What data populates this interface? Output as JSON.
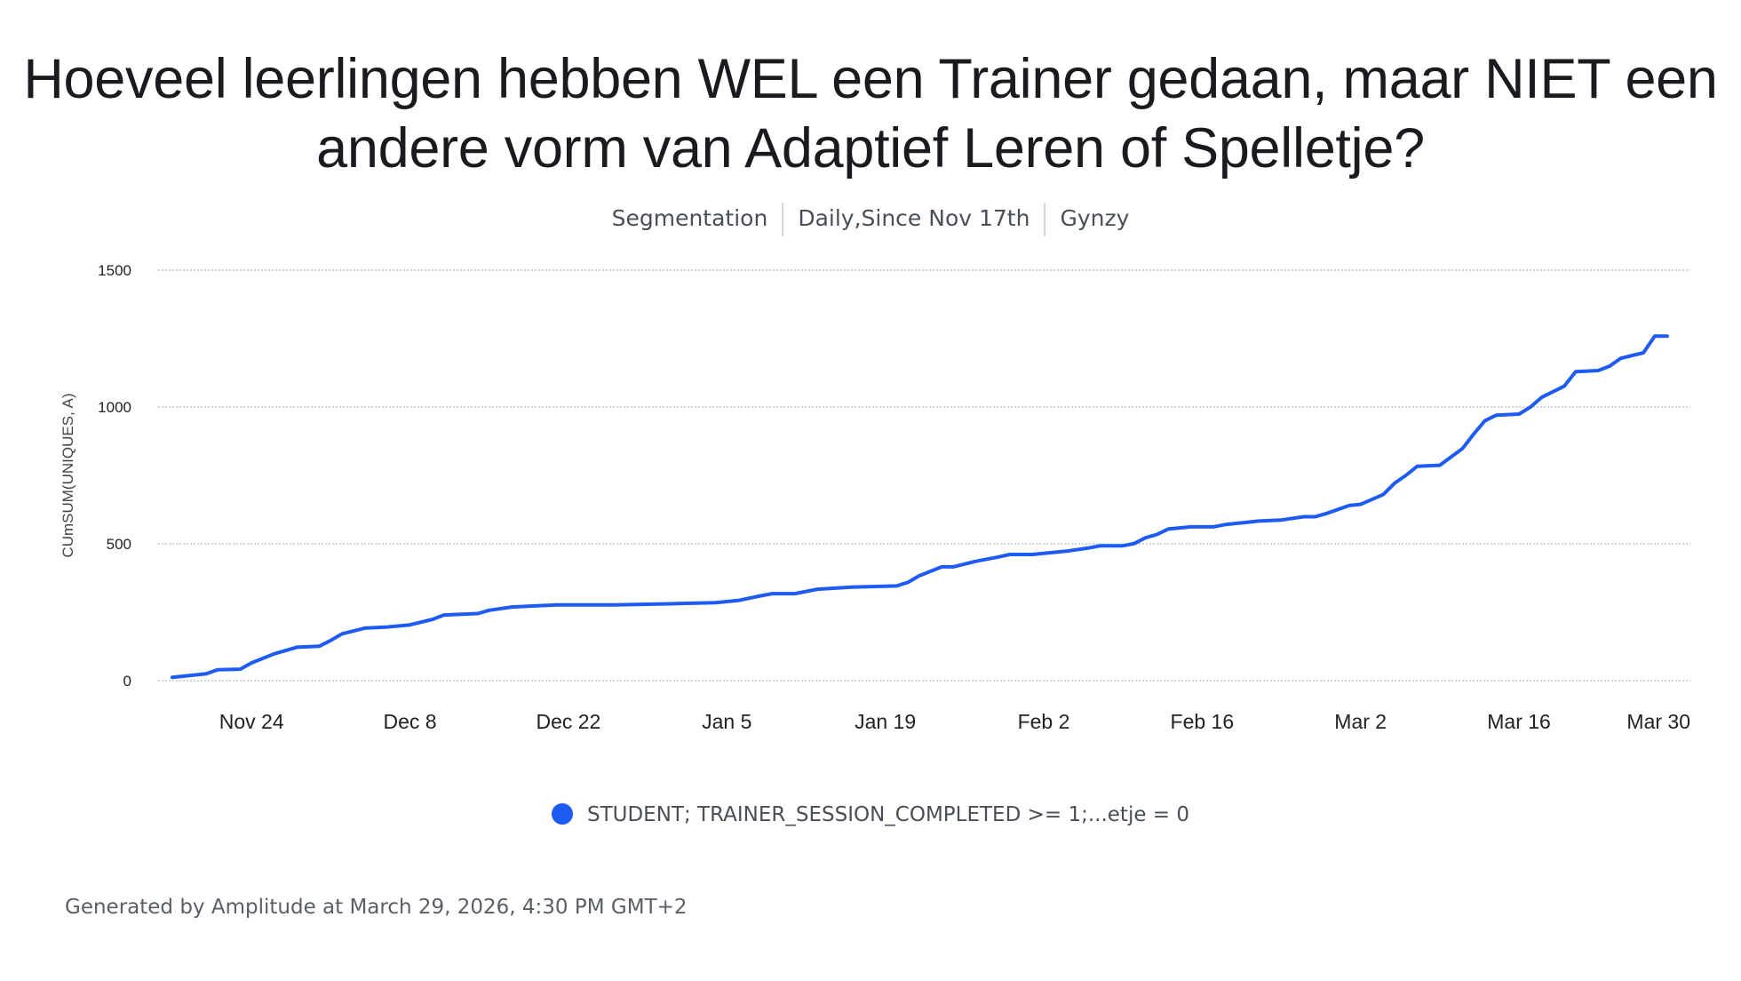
{
  "title": "Hoeveel leerlingen hebben WEL een Trainer gedaan, maar NIET een andere vorm van Adaptief Leren of Spelletje?",
  "subtitle": [
    "Segmentation",
    "Daily,Since Nov 17th",
    "Gynzy"
  ],
  "footer": "Generated by Amplitude at March 29, 2026, 4:30 PM GMT+2",
  "colors": {
    "series": "#1e5bf2",
    "grid": "#c4c9d0"
  },
  "chart_data": {
    "type": "line",
    "title": "",
    "xlabel": "",
    "ylabel": "CUmSUM(UNIQUES, A)",
    "ylim": [
      0,
      1500
    ],
    "yticks": [
      "0",
      "500",
      "1000",
      "1500"
    ],
    "ytick_values": [
      0,
      500,
      1000,
      1500
    ],
    "xlim": [
      "2025-11-17",
      "2026-03-29"
    ],
    "xticks": [
      {
        "date": "2025-11-24",
        "label": "Nov 24"
      },
      {
        "date": "2025-12-08",
        "label": "Dec 8"
      },
      {
        "date": "2025-12-22",
        "label": "Dec 22"
      },
      {
        "date": "2026-01-05",
        "label": "Jan 5"
      },
      {
        "date": "2026-01-19",
        "label": "Jan 19"
      },
      {
        "date": "2026-02-02",
        "label": "Feb 2"
      },
      {
        "date": "2026-02-16",
        "label": "Feb 16"
      },
      {
        "date": "2026-03-02",
        "label": "Mar 2"
      },
      {
        "date": "2026-03-16",
        "label": "Mar 16"
      },
      {
        "date": "2026-03-30",
        "label": "Mar 30"
      }
    ],
    "grid": true,
    "legend_position": "bottom",
    "series": [
      {
        "name": "STUDENT; TRAINER_SESSION_COMPLETED >= 1;...etje = 0",
        "x": [
          "2025-11-17",
          "2025-11-20",
          "2025-11-21",
          "2025-11-23",
          "2025-11-24",
          "2025-11-26",
          "2025-11-28",
          "2025-11-30",
          "2025-12-01",
          "2025-12-02",
          "2025-12-04",
          "2025-12-06",
          "2025-12-08",
          "2025-12-10",
          "2025-12-11",
          "2025-12-14",
          "2025-12-15",
          "2025-12-17",
          "2025-12-19",
          "2025-12-21",
          "2025-12-26",
          "2025-12-31",
          "2026-01-04",
          "2026-01-06",
          "2026-01-08",
          "2026-01-09",
          "2026-01-11",
          "2026-01-13",
          "2026-01-16",
          "2026-01-20",
          "2026-01-21",
          "2026-01-22",
          "2026-01-24",
          "2026-01-25",
          "2026-01-27",
          "2026-01-29",
          "2026-01-30",
          "2026-02-01",
          "2026-02-03",
          "2026-02-04",
          "2026-02-06",
          "2026-02-07",
          "2026-02-09",
          "2026-02-10",
          "2026-02-11",
          "2026-02-12",
          "2026-02-13",
          "2026-02-15",
          "2026-02-17",
          "2026-02-18",
          "2026-02-20",
          "2026-02-21",
          "2026-02-23",
          "2026-02-25",
          "2026-02-26",
          "2026-02-27",
          "2026-03-01",
          "2026-03-02",
          "2026-03-04",
          "2026-03-05",
          "2026-03-06",
          "2026-03-07",
          "2026-03-09",
          "2026-03-11",
          "2026-03-12",
          "2026-03-13",
          "2026-03-14",
          "2026-03-16",
          "2026-03-17",
          "2026-03-18",
          "2026-03-20",
          "2026-03-21",
          "2026-03-23",
          "2026-03-24",
          "2026-03-25",
          "2026-03-27",
          "2026-03-28"
        ],
        "y": [
          12,
          25,
          40,
          42,
          65,
          98,
          122,
          126,
          147,
          171,
          192,
          196,
          204,
          224,
          240,
          245,
          257,
          269,
          273,
          277,
          277,
          281,
          285,
          293,
          310,
          318,
          318,
          334,
          342,
          346,
          359,
          383,
          416,
          416,
          436,
          452,
          461,
          461,
          469,
          473,
          485,
          493,
          493,
          501,
          522,
          534,
          554,
          562,
          562,
          570,
          579,
          583,
          587,
          599,
          599,
          611,
          640,
          644,
          680,
          721,
          750,
          783,
          787,
          848,
          901,
          950,
          970,
          974,
          999,
          1035,
          1076,
          1129,
          1133,
          1149,
          1178,
          1198,
          1259
        ]
      }
    ]
  }
}
